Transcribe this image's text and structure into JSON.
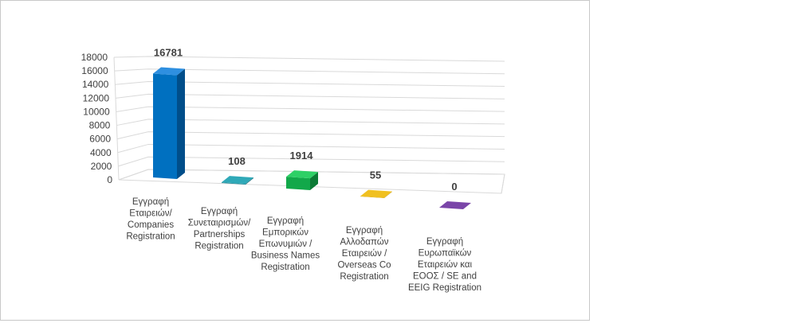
{
  "chart_data": {
    "type": "bar",
    "title": "",
    "xlabel": "",
    "ylabel": "",
    "ylim": [
      0,
      18000
    ],
    "yticks": [
      0,
      2000,
      4000,
      6000,
      8000,
      10000,
      12000,
      14000,
      16000,
      18000
    ],
    "grid": true,
    "legend": "none",
    "categories": [
      [
        "Εγγραφή",
        "Εταιρειών/",
        "Companies",
        "Registration"
      ],
      [
        "Εγγραφή",
        "Συνεταιρισμών/",
        "Partnerships",
        "Registration"
      ],
      [
        "Εγγραφή",
        "Εμπορικών",
        "Επωνυμιών /",
        "Business Names",
        "Registration"
      ],
      [
        "Εγγραφή",
        "Αλλοδαπών",
        "Εταιρειών /",
        "Overseas Co",
        "Registration"
      ],
      [
        "Εγγραφή",
        "Ευρωπαϊκών",
        "Εταιρειών και",
        "ΕΟΟΣ / SE and",
        "EEIG Registration"
      ]
    ],
    "values": [
      16781,
      108,
      1914,
      55,
      0
    ],
    "data_labels": [
      "16781",
      "108",
      "1914",
      "55",
      "0"
    ],
    "colors": {
      "front": [
        "#0070C0",
        "#1F8B99",
        "#12A84A",
        "#D4A000",
        "#5B2C86"
      ],
      "top": [
        "#2E8FE0",
        "#2FA9B8",
        "#2ED066",
        "#F0C020",
        "#7A45A8"
      ],
      "side": [
        "#004E8A",
        "#146470",
        "#0B7A35",
        "#9E7600",
        "#3E1C60"
      ],
      "grid": "#d9d9d9"
    }
  }
}
